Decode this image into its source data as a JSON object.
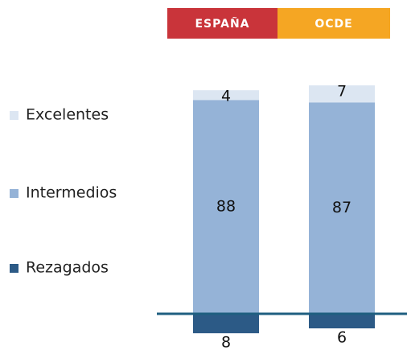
{
  "chart_data": {
    "type": "bar",
    "stacked": true,
    "categories": [
      "ESPAÑA",
      "OCDE"
    ],
    "category_colors": [
      "#c9343a",
      "#f5a623"
    ],
    "series": [
      {
        "name": "Rezagados",
        "color": "#2c5a86",
        "below_axis": true,
        "values": [
          8,
          6
        ]
      },
      {
        "name": "Intermedios",
        "color": "#95b3d7",
        "values": [
          88,
          87
        ]
      },
      {
        "name": "Excelentes",
        "color": "#dce6f2",
        "values": [
          4,
          7
        ]
      }
    ],
    "axis_color": "#1f5f80"
  }
}
